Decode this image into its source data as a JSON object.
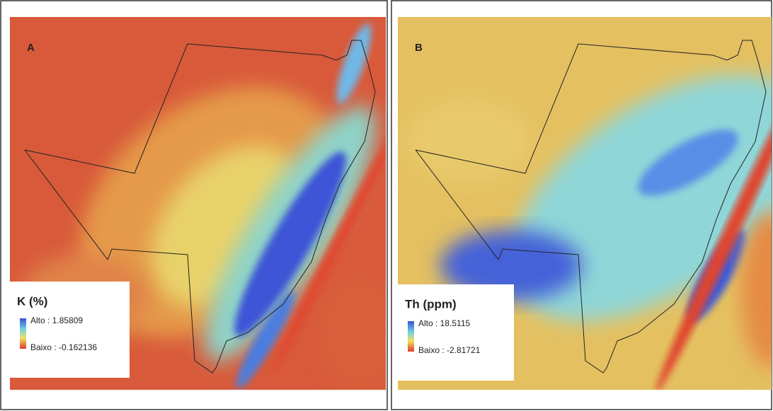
{
  "panels": [
    {
      "label": "A",
      "legend": {
        "title": "K (%)",
        "high": "Alto : 1.85809",
        "low": "Baixo : -0.162136"
      }
    },
    {
      "label": "B",
      "legend": {
        "title": "Th (ppm)",
        "high": "Alto : 18.5115",
        "low": "Baixo : -2.81721"
      }
    }
  ]
}
